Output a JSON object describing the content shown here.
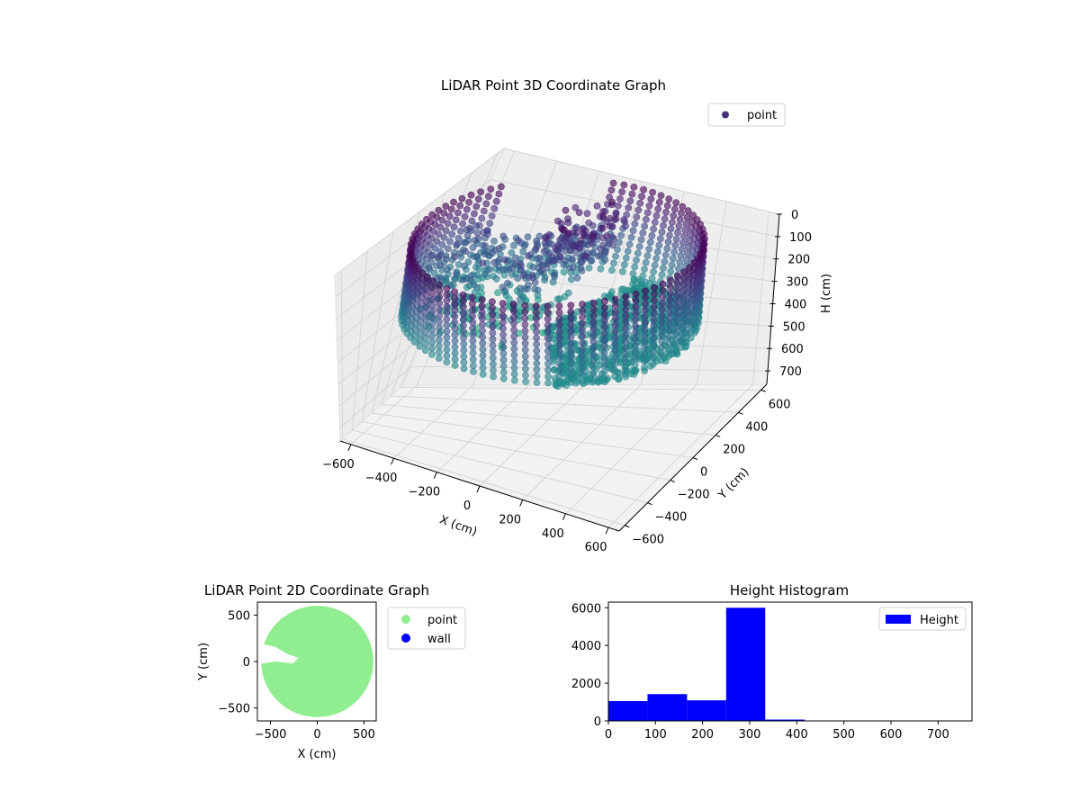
{
  "chart_data": [
    {
      "type": "scatter",
      "projection": "3d",
      "title": "LiDAR Point 3D Coordinate Graph",
      "xlabel": "X (cm)",
      "ylabel": "Y (cm)",
      "zlabel": "H (cm)",
      "xlim": [
        -650,
        650
      ],
      "ylim": [
        -650,
        650
      ],
      "zlim": [
        760,
        0
      ],
      "z_inverted": true,
      "xticks": [
        -600,
        -400,
        -200,
        0,
        200,
        400,
        600
      ],
      "yticks": [
        -600,
        -400,
        -200,
        0,
        200,
        400,
        600
      ],
      "zticks": [
        0,
        100,
        200,
        300,
        400,
        500,
        600,
        700
      ],
      "grid": true,
      "colormap": "viridis",
      "legend": {
        "placement": "upper-right",
        "entries": [
          {
            "label": "point",
            "color": "#46307e"
          }
        ]
      },
      "series": [
        {
          "name": "point",
          "description_values": {
            "wall_ring": {
              "radius": 590,
              "h_min": 0,
              "h_max": 330,
              "gap_angles_deg": [
                100,
                140
              ]
            },
            "floor_fan": {
              "h": 330,
              "radius_max": 590,
              "angle_from_deg": -60,
              "angle_to_deg": 80
            },
            "scatter_cluster": {
              "x_range": [
                -550,
                -50
              ],
              "y_range": [
                -100,
                400
              ],
              "h_range": [
                120,
                430
              ]
            }
          }
        }
      ]
    },
    {
      "type": "scatter",
      "title": "LiDAR Point 2D Coordinate Graph",
      "xlabel": "X (cm)",
      "ylabel": "Y (cm)",
      "xlim": [
        -640,
        630
      ],
      "ylim": [
        -640,
        640
      ],
      "xticks": [
        -500,
        0,
        500
      ],
      "yticks": [
        -500,
        0,
        500
      ],
      "legend": {
        "placement": "outside-right",
        "entries": [
          {
            "label": "point",
            "color": "#90ee90"
          },
          {
            "label": "wall",
            "color": "#0000ff"
          }
        ]
      },
      "series": [
        {
          "name": "point",
          "shape": "filled disc",
          "radius": 600
        },
        {
          "name": "wall",
          "values": []
        }
      ]
    },
    {
      "type": "bar",
      "subtype": "histogram",
      "title": "Height Histogram",
      "xlim": [
        0,
        772
      ],
      "ylim": [
        0,
        6300
      ],
      "xticks": [
        0,
        100,
        200,
        300,
        400,
        500,
        600,
        700
      ],
      "yticks": [
        0,
        2000,
        4000,
        6000
      ],
      "legend": {
        "placement": "upper-right",
        "entries": [
          {
            "label": "Height",
            "color": "#0000ff"
          }
        ]
      },
      "series": [
        {
          "name": "Height",
          "bins": [
            {
              "from": 0,
              "to": 83,
              "count": 1050
            },
            {
              "from": 83,
              "to": 167,
              "count": 1420
            },
            {
              "from": 167,
              "to": 250,
              "count": 1090
            },
            {
              "from": 250,
              "to": 333,
              "count": 6000
            },
            {
              "from": 333,
              "to": 417,
              "count": 70
            },
            {
              "from": 417,
              "to": 500,
              "count": 0
            },
            {
              "from": 500,
              "to": 583,
              "count": 0
            },
            {
              "from": 583,
              "to": 667,
              "count": 0
            },
            {
              "from": 667,
              "to": 750,
              "count": 0
            }
          ]
        }
      ]
    }
  ]
}
